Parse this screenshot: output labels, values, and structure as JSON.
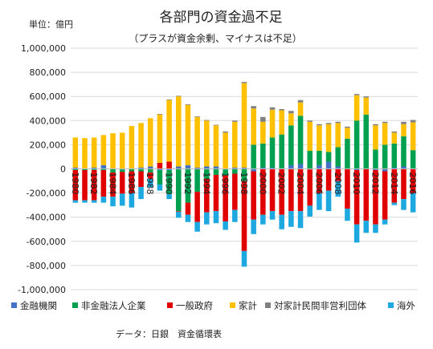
{
  "chart_data": {
    "type": "bar",
    "stacked": true,
    "title": "各部門の資金過不足",
    "subtitle": "（プラスが資金余剰、マイナスは不足）",
    "unit_label": "単位：億円",
    "source": "データ：日銀　資金循環表",
    "ylim": [
      -1000000,
      1000000
    ],
    "yticks": [
      1000000,
      800000,
      600000,
      400000,
      200000,
      0,
      -200000,
      -400000,
      -600000,
      -800000,
      -1000000
    ],
    "ytick_labels": [
      "1,000,000",
      "800,000",
      "600,000",
      "400,000",
      "200,000",
      "0",
      "-200,000",
      "-400,000",
      "-600,000",
      "-800,000",
      "-1,000,000"
    ],
    "grid": true,
    "legend_position": "bottom",
    "categories": [
      "1980",
      "1981",
      "1982",
      "1983",
      "1984",
      "1985",
      "1986",
      "1987",
      "1988",
      "1989",
      "1990",
      "1991",
      "1992",
      "1993",
      "1994",
      "1995",
      "1996",
      "1997",
      "1998",
      "1999",
      "2000",
      "2001",
      "2002",
      "2003",
      "2004",
      "2005",
      "2006",
      "2007",
      "2008",
      "2009",
      "2010",
      "2011",
      "2012",
      "2013",
      "2014",
      "2015",
      "2016"
    ],
    "xtick_labels": [
      "1980",
      "",
      "1982",
      "",
      "1984",
      "",
      "1986",
      "",
      "1988",
      "",
      "1990",
      "",
      "1992",
      "",
      "1994",
      "",
      "1996",
      "",
      "1998",
      "",
      "2000",
      "",
      "2002",
      "",
      "2004",
      "",
      "2006",
      "",
      "2008",
      "",
      "2010",
      "",
      "2012",
      "",
      "2014",
      "",
      "2016"
    ],
    "series": [
      {
        "name": "金融機関",
        "color": "#4472C4",
        "values": [
          10000,
          5000,
          10000,
          30000,
          5000,
          -5000,
          5000,
          10000,
          20000,
          -10000,
          -10000,
          20000,
          30000,
          10000,
          20000,
          20000,
          -5000,
          10000,
          10000,
          -20000,
          10000,
          10000,
          5000,
          30000,
          40000,
          -5000,
          30000,
          60000,
          20000,
          0,
          -10000,
          0,
          -10000,
          -20000,
          10000,
          20000,
          5000
        ]
      },
      {
        "name": "非金融法人企業",
        "color": "#00A050",
        "values": [
          -10000,
          -10000,
          -10000,
          -10000,
          -30000,
          -20000,
          -20000,
          -20000,
          -30000,
          -120000,
          -200000,
          -350000,
          -280000,
          -190000,
          -80000,
          -50000,
          -50000,
          -40000,
          -100000,
          200000,
          200000,
          250000,
          280000,
          330000,
          400000,
          150000,
          120000,
          80000,
          160000,
          250000,
          400000,
          450000,
          160000,
          200000,
          200000,
          250000,
          150000
        ]
      },
      {
        "name": "一般政府",
        "color": "#E00000",
        "values": [
          -250000,
          -250000,
          -250000,
          -220000,
          -200000,
          -180000,
          -180000,
          -130000,
          -50000,
          50000,
          60000,
          -5000,
          -100000,
          -250000,
          -280000,
          -300000,
          -380000,
          -300000,
          -580000,
          -400000,
          -380000,
          -350000,
          -380000,
          -350000,
          -350000,
          -300000,
          -200000,
          -180000,
          -100000,
          -330000,
          -450000,
          -430000,
          -450000,
          -400000,
          -280000,
          -250000,
          -200000
        ]
      },
      {
        "name": "家計",
        "color": "#FFC000",
        "values": [
          250000,
          250000,
          250000,
          250000,
          290000,
          300000,
          350000,
          370000,
          400000,
          400000,
          510000,
          580000,
          500000,
          420000,
          380000,
          340000,
          300000,
          380000,
          700000,
          300000,
          180000,
          230000,
          200000,
          100000,
          110000,
          240000,
          210000,
          230000,
          200000,
          90000,
          210000,
          140000,
          200000,
          180000,
          90000,
          100000,
          230000
        ]
      },
      {
        "name": "対家計民間非営利団体",
        "color": "#808080",
        "values": [
          0,
          0,
          0,
          0,
          0,
          0,
          0,
          0,
          0,
          5000,
          5000,
          5000,
          5000,
          5000,
          5000,
          5000,
          10000,
          10000,
          10000,
          20000,
          40000,
          20000,
          10000,
          20000,
          20000,
          10000,
          10000,
          10000,
          10000,
          10000,
          10000,
          10000,
          10000,
          10000,
          10000,
          20000,
          20000
        ]
      },
      {
        "name": "海外",
        "color": "#1EA8E0",
        "values": [
          -20000,
          -20000,
          -20000,
          -50000,
          -80000,
          -100000,
          -120000,
          -100000,
          -70000,
          -50000,
          -40000,
          -50000,
          -60000,
          -80000,
          -100000,
          -100000,
          -70000,
          -100000,
          -130000,
          -120000,
          -80000,
          -70000,
          -120000,
          -130000,
          -140000,
          -90000,
          -140000,
          -170000,
          -130000,
          -100000,
          -150000,
          -100000,
          -70000,
          -40000,
          -20000,
          -90000,
          -160000
        ]
      }
    ]
  }
}
